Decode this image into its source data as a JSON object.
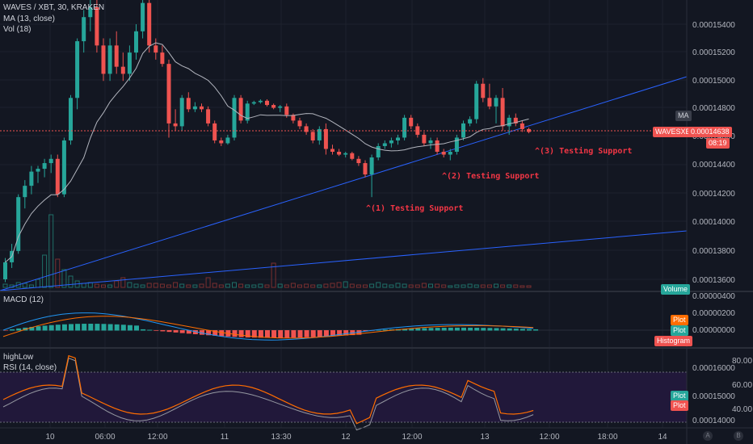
{
  "legend": {
    "symbol": "WAVES / XBT, 30, KRAKEN",
    "ma": "MA (13, close)",
    "vol": "Vol (18)",
    "macd": "MACD (12)",
    "highlow": "highLow",
    "rsi": "RSI (14, close)"
  },
  "annotations": [
    "^(1) Testing Support",
    "^(2) Testing Support",
    "^(3) Testing Support"
  ],
  "price_axis": [
    "0.00015400",
    "0.00015200",
    "0.00015000",
    "0.00014800",
    "0.00014600",
    "0.00014400",
    "0.00014200",
    "0.00014000",
    "0.00013800",
    "0.00013600"
  ],
  "macd_axis": [
    "0.00000400",
    "0.00000200",
    "0.00000000"
  ],
  "rsi_axis": [
    "80.00",
    "60.00",
    "40.00"
  ],
  "hl_axis": [
    "0.00016000",
    "0.00015000",
    "0.00014000"
  ],
  "time_axis": [
    "10",
    "06:00",
    "12:00",
    "11",
    "13:30",
    "12",
    "12:00",
    "13",
    "12:00",
    "18:00",
    "14"
  ],
  "tags": {
    "ma": "MA",
    "symbol_tag": "WAVESXBT",
    "last_price": "0.00014638",
    "countdown": "08:19",
    "volume": "Volume",
    "macd_plot1": "Plot",
    "macd_plot2": "Plot",
    "macd_hist": "Histogram",
    "rsi_plot1": "Plot",
    "rsi_plot2": "Plot"
  },
  "corner": {
    "a": "A",
    "b": "B"
  },
  "colors": {
    "up": "#26a69a",
    "down": "#ef5350",
    "ma": "#b2b5be",
    "trend": "#2962ff",
    "macd": "#2196f3",
    "signal": "#ff6d00",
    "rsi": "#ff6d00",
    "hl": "#e0e0e0"
  },
  "chart_data": {
    "type": "candlestick",
    "title": "WAVES / XBT, 30, KRAKEN",
    "ylim": [
      0.000135,
      0.000156
    ],
    "last_price": 0.00014638,
    "ohlc": [
      [
        0.000136,
        0.0001375,
        0.0001358,
        0.0001372
      ],
      [
        0.0001372,
        0.0001385,
        0.0001368,
        0.000138
      ],
      [
        0.000138,
        0.000142,
        0.0001378,
        0.0001418
      ],
      [
        0.0001418,
        0.000143,
        0.000141,
        0.0001426
      ],
      [
        0.0001426,
        0.000144,
        0.000142,
        0.0001436
      ],
      [
        0.0001436,
        0.000144,
        0.0001428,
        0.0001438
      ],
      [
        0.0001438,
        0.0001445,
        0.0001432,
        0.0001442
      ],
      [
        0.0001442,
        0.0001448,
        0.0001435,
        0.0001445
      ],
      [
        0.0001445,
        0.0001448,
        0.0001418,
        0.000142
      ],
      [
        0.000142,
        0.000146,
        0.0001418,
        0.0001458
      ],
      [
        0.0001458,
        0.000149,
        0.0001455,
        0.0001488
      ],
      [
        0.0001488,
        0.000153,
        0.000148,
        0.0001528
      ],
      [
        0.0001528,
        0.000155,
        0.000152,
        0.0001545
      ],
      [
        0.0001545,
        0.000156,
        0.0001535,
        0.0001552
      ],
      [
        0.0001552,
        0.000156,
        0.000152,
        0.0001525
      ],
      [
        0.0001525,
        0.000153,
        0.00015,
        0.0001505
      ],
      [
        0.0001505,
        0.000153,
        0.00015,
        0.0001525
      ],
      [
        0.0001525,
        0.0001535,
        0.0001505,
        0.000151
      ],
      [
        0.000151,
        0.000152,
        0.00015,
        0.0001505
      ],
      [
        0.0001505,
        0.0001525,
        0.00015,
        0.000152
      ],
      [
        0.000152,
        0.000154,
        0.0001515,
        0.0001535
      ],
      [
        0.0001535,
        0.000156,
        0.000153,
        0.0001555
      ],
      [
        0.0001555,
        0.0001565,
        0.000152,
        0.0001525
      ],
      [
        0.0001525,
        0.000153,
        0.0001515,
        0.000152
      ],
      [
        0.000152,
        0.0001525,
        0.000151,
        0.0001512
      ],
      [
        0.0001512,
        0.0001515,
        0.000146,
        0.000147
      ],
      [
        0.000147,
        0.000148,
        0.0001465,
        0.0001468
      ],
      [
        0.0001468,
        0.000149,
        0.0001465,
        0.0001488
      ],
      [
        0.0001488,
        0.0001492,
        0.0001478,
        0.000148
      ],
      [
        0.000148,
        0.0001485,
        0.0001478,
        0.0001482
      ],
      [
        0.0001482,
        0.0001484,
        0.0001478,
        0.000148
      ],
      [
        0.000148,
        0.0001482,
        0.0001468,
        0.000147
      ],
      [
        0.000147,
        0.0001472,
        0.0001456,
        0.0001458
      ],
      [
        0.0001458,
        0.000146,
        0.0001454,
        0.0001456
      ],
      [
        0.0001456,
        0.0001462,
        0.0001455,
        0.000146
      ],
      [
        0.000146,
        0.000149,
        0.0001458,
        0.0001488
      ],
      [
        0.0001488,
        0.000149,
        0.000147,
        0.0001472
      ],
      [
        0.0001472,
        0.0001486,
        0.000147,
        0.0001484
      ],
      [
        0.0001484,
        0.0001486,
        0.0001483,
        0.0001485
      ],
      [
        0.0001485,
        0.0001487,
        0.0001484,
        0.0001486
      ],
      [
        0.0001486,
        0.0001487,
        0.0001482,
        0.0001483
      ],
      [
        0.0001483,
        0.0001484,
        0.000148,
        0.0001481
      ],
      [
        0.0001481,
        0.0001483,
        0.0001478,
        0.0001482
      ],
      [
        0.0001482,
        0.0001484,
        0.0001474,
        0.0001476
      ],
      [
        0.0001476,
        0.0001477,
        0.000147,
        0.0001472
      ],
      [
        0.0001472,
        0.0001474,
        0.0001466,
        0.0001468
      ],
      [
        0.0001468,
        0.000147,
        0.0001462,
        0.0001464
      ],
      [
        0.0001464,
        0.0001466,
        0.0001456,
        0.0001458
      ],
      [
        0.0001458,
        0.0001468,
        0.0001455,
        0.0001466
      ],
      [
        0.0001466,
        0.000147,
        0.0001448,
        0.0001452
      ],
      [
        0.0001452,
        0.0001455,
        0.0001448,
        0.000145
      ],
      [
        0.000145,
        0.0001452,
        0.0001447,
        0.0001448
      ],
      [
        0.0001448,
        0.000145,
        0.0001446,
        0.0001449
      ],
      [
        0.0001449,
        0.000145,
        0.0001444,
        0.0001445
      ],
      [
        0.0001445,
        0.0001447,
        0.000144,
        0.0001442
      ],
      [
        0.0001442,
        0.0001444,
        0.0001432,
        0.0001434
      ],
      [
        0.0001434,
        0.0001448,
        0.0001418,
        0.0001446
      ],
      [
        0.0001446,
        0.0001456,
        0.0001444,
        0.0001454
      ],
      [
        0.0001454,
        0.0001458,
        0.0001452,
        0.0001456
      ],
      [
        0.0001456,
        0.000146,
        0.0001453,
        0.0001458
      ],
      [
        0.0001458,
        0.0001462,
        0.0001455,
        0.000146
      ],
      [
        0.000146,
        0.0001476,
        0.0001458,
        0.0001474
      ],
      [
        0.0001474,
        0.0001476,
        0.0001466,
        0.0001468
      ],
      [
        0.0001468,
        0.000147,
        0.000146,
        0.0001462
      ],
      [
        0.0001462,
        0.0001464,
        0.0001454,
        0.0001456
      ],
      [
        0.0001456,
        0.000146,
        0.0001452,
        0.0001458
      ],
      [
        0.0001458,
        0.000146,
        0.0001448,
        0.000145
      ],
      [
        0.000145,
        0.0001452,
        0.0001446,
        0.0001448
      ],
      [
        0.0001448,
        0.0001452,
        0.0001444,
        0.000145
      ],
      [
        0.000145,
        0.0001462,
        0.0001448,
        0.000146
      ],
      [
        0.000146,
        0.0001472,
        0.0001458,
        0.000147
      ],
      [
        0.000147,
        0.0001475,
        0.0001468,
        0.0001473
      ],
      [
        0.0001473,
        0.00015,
        0.000147,
        0.0001498
      ],
      [
        0.0001498,
        0.0001502,
        0.0001485,
        0.0001488
      ],
      [
        0.0001488,
        0.0001498,
        0.000148,
        0.0001482
      ],
      [
        0.0001482,
        0.000149,
        0.000147,
        0.0001488
      ],
      [
        0.0001488,
        0.0001495,
        0.0001465,
        0.0001468
      ],
      [
        0.0001468,
        0.0001476,
        0.0001462,
        0.0001474
      ],
      [
        0.0001474,
        0.0001477,
        0.0001468,
        0.000147
      ],
      [
        0.000147,
        0.0001472,
        0.0001464,
        0.0001466
      ],
      [
        0.0001466,
        0.0001467,
        0.0001463,
        0.0001464
      ]
    ]
  }
}
